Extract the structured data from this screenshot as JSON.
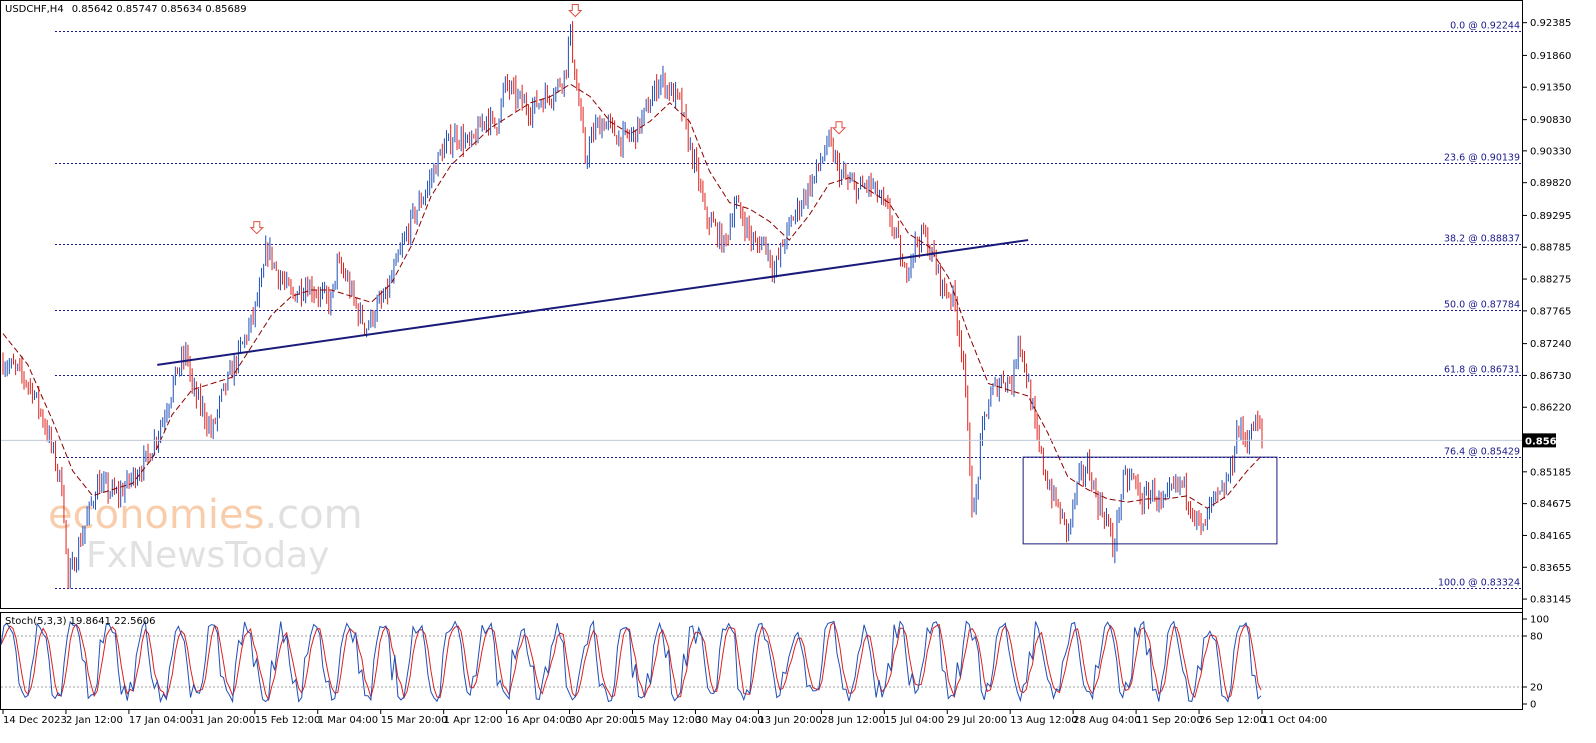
{
  "title": {
    "symbol": "USDCHF,H4",
    "ohlc": "0.85642 0.85747 0.85634 0.85689"
  },
  "chart_data": {
    "type": "line",
    "symbol": "USDCHF",
    "timeframe": "H4",
    "ylim": [
      0.8305,
      0.9262
    ],
    "y_ticks": [
      "0.92385",
      "0.91860",
      "0.91350",
      "0.90830",
      "0.90330",
      "0.89820",
      "0.89295",
      "0.88785",
      "0.88275",
      "0.87765",
      "0.87240",
      "0.86730",
      "0.86220",
      "0.85185",
      "0.84675",
      "0.84165",
      "0.83655",
      "0.83145"
    ],
    "x_ticks": [
      "14 Dec 2023",
      "2 Jan 12:00",
      "17 Jan 04:00",
      "31 Jan 20:00",
      "15 Feb 12:00",
      "1 Mar 04:00",
      "15 Mar 20:00",
      "1 Apr 12:00",
      "16 Apr 04:00",
      "30 Apr 20:00",
      "15 May 12:00",
      "30 May 04:00",
      "13 Jun 20:00",
      "28 Jun 12:00",
      "15 Jul 04:00",
      "29 Jul 20:00",
      "13 Aug 12:00",
      "28 Aug 04:00",
      "11 Sep 20:00",
      "26 Sep 12:00",
      "11 Oct 04:00"
    ],
    "price_path": [
      [
        0,
        0.8695
      ],
      [
        3,
        0.868
      ],
      [
        6,
        0.865
      ],
      [
        9,
        0.858
      ],
      [
        12,
        0.849
      ],
      [
        13,
        0.834
      ],
      [
        16,
        0.842
      ],
      [
        19,
        0.85
      ],
      [
        23,
        0.848
      ],
      [
        26,
        0.851
      ],
      [
        29,
        0.854
      ],
      [
        32,
        0.86
      ],
      [
        35,
        0.868
      ],
      [
        37,
        0.871
      ],
      [
        38,
        0.865
      ],
      [
        40,
        0.862
      ],
      [
        42,
        0.858
      ],
      [
        44,
        0.864
      ],
      [
        46,
        0.868
      ],
      [
        48,
        0.872
      ],
      [
        50,
        0.876
      ],
      [
        52,
        0.882
      ],
      [
        53,
        0.888
      ],
      [
        55,
        0.884
      ],
      [
        58,
        0.88
      ],
      [
        61,
        0.882
      ],
      [
        64,
        0.88
      ],
      [
        66,
        0.879
      ],
      [
        67,
        0.885
      ],
      [
        69,
        0.883
      ],
      [
        71,
        0.878
      ],
      [
        73,
        0.875
      ],
      [
        75,
        0.878
      ],
      [
        77,
        0.88
      ],
      [
        79,
        0.885
      ],
      [
        82,
        0.892
      ],
      [
        85,
        0.897
      ],
      [
        88,
        0.903
      ],
      [
        91,
        0.906
      ],
      [
        94,
        0.904
      ],
      [
        97,
        0.909
      ],
      [
        99,
        0.907
      ],
      [
        101,
        0.914
      ],
      [
        103,
        0.912
      ],
      [
        106,
        0.91
      ],
      [
        109,
        0.912
      ],
      [
        111,
        0.913
      ],
      [
        113,
        0.916
      ],
      [
        114,
        0.9224
      ],
      [
        115,
        0.915
      ],
      [
        116,
        0.909
      ],
      [
        117,
        0.902
      ],
      [
        119,
        0.907
      ],
      [
        121,
        0.908
      ],
      [
        124,
        0.905
      ],
      [
        127,
        0.906
      ],
      [
        130,
        0.911
      ],
      [
        132,
        0.915
      ],
      [
        134,
        0.913
      ],
      [
        136,
        0.911
      ],
      [
        138,
        0.904
      ],
      [
        140,
        0.898
      ],
      [
        141,
        0.893
      ],
      [
        143,
        0.891
      ],
      [
        145,
        0.888
      ],
      [
        147,
        0.895
      ],
      [
        149,
        0.892
      ],
      [
        151,
        0.888
      ],
      [
        153,
        0.889
      ],
      [
        155,
        0.884
      ],
      [
        157,
        0.889
      ],
      [
        159,
        0.893
      ],
      [
        161,
        0.896
      ],
      [
        163,
        0.899
      ],
      [
        165,
        0.903
      ],
      [
        166,
        0.9045
      ],
      [
        168,
        0.9
      ],
      [
        170,
        0.898
      ],
      [
        172,
        0.897
      ],
      [
        174,
        0.898
      ],
      [
        176,
        0.896
      ],
      [
        178,
        0.893
      ],
      [
        180,
        0.888
      ],
      [
        181,
        0.883
      ],
      [
        183,
        0.888
      ],
      [
        185,
        0.89
      ],
      [
        187,
        0.886
      ],
      [
        189,
        0.881
      ],
      [
        191,
        0.88
      ],
      [
        193,
        0.87
      ],
      [
        194,
        0.856
      ],
      [
        195,
        0.844
      ],
      [
        196,
        0.852
      ],
      [
        197,
        0.86
      ],
      [
        199,
        0.865
      ],
      [
        201,
        0.867
      ],
      [
        203,
        0.866
      ],
      [
        204,
        0.874
      ],
      [
        206,
        0.866
      ],
      [
        208,
        0.856
      ],
      [
        210,
        0.85
      ],
      [
        212,
        0.846
      ],
      [
        214,
        0.842
      ],
      [
        216,
        0.85
      ],
      [
        218,
        0.853
      ],
      [
        220,
        0.847
      ],
      [
        222,
        0.844
      ],
      [
        223,
        0.839
      ],
      [
        225,
        0.85
      ],
      [
        227,
        0.851
      ],
      [
        229,
        0.847
      ],
      [
        231,
        0.849
      ],
      [
        233,
        0.846
      ],
      [
        235,
        0.849
      ],
      [
        237,
        0.85
      ],
      [
        239,
        0.846
      ],
      [
        241,
        0.842
      ],
      [
        243,
        0.847
      ],
      [
        245,
        0.848
      ],
      [
        247,
        0.853
      ],
      [
        248,
        0.859
      ],
      [
        250,
        0.857
      ],
      [
        252,
        0.86
      ],
      [
        253,
        0.8569
      ]
    ],
    "ma_path": [
      [
        0,
        0.874
      ],
      [
        5,
        0.869
      ],
      [
        10,
        0.86
      ],
      [
        14,
        0.852
      ],
      [
        18,
        0.848
      ],
      [
        22,
        0.849
      ],
      [
        26,
        0.85
      ],
      [
        30,
        0.854
      ],
      [
        34,
        0.861
      ],
      [
        38,
        0.865
      ],
      [
        42,
        0.866
      ],
      [
        46,
        0.867
      ],
      [
        50,
        0.872
      ],
      [
        54,
        0.877
      ],
      [
        58,
        0.88
      ],
      [
        62,
        0.881
      ],
      [
        66,
        0.881
      ],
      [
        70,
        0.88
      ],
      [
        74,
        0.879
      ],
      [
        78,
        0.882
      ],
      [
        82,
        0.888
      ],
      [
        86,
        0.896
      ],
      [
        90,
        0.901
      ],
      [
        94,
        0.904
      ],
      [
        98,
        0.907
      ],
      [
        102,
        0.909
      ],
      [
        106,
        0.911
      ],
      [
        110,
        0.912
      ],
      [
        114,
        0.914
      ],
      [
        118,
        0.912
      ],
      [
        122,
        0.908
      ],
      [
        126,
        0.906
      ],
      [
        130,
        0.908
      ],
      [
        134,
        0.911
      ],
      [
        138,
        0.908
      ],
      [
        142,
        0.9
      ],
      [
        146,
        0.895
      ],
      [
        150,
        0.894
      ],
      [
        154,
        0.892
      ],
      [
        158,
        0.889
      ],
      [
        162,
        0.893
      ],
      [
        166,
        0.898
      ],
      [
        170,
        0.899
      ],
      [
        174,
        0.897
      ],
      [
        178,
        0.895
      ],
      [
        182,
        0.89
      ],
      [
        186,
        0.888
      ],
      [
        190,
        0.883
      ],
      [
        194,
        0.874
      ],
      [
        198,
        0.866
      ],
      [
        202,
        0.865
      ],
      [
        206,
        0.864
      ],
      [
        210,
        0.858
      ],
      [
        214,
        0.851
      ],
      [
        218,
        0.849
      ],
      [
        222,
        0.8475
      ],
      [
        226,
        0.847
      ],
      [
        230,
        0.8475
      ],
      [
        234,
        0.8475
      ],
      [
        238,
        0.848
      ],
      [
        242,
        0.846
      ],
      [
        246,
        0.848
      ],
      [
        250,
        0.852
      ],
      [
        253,
        0.8545
      ]
    ],
    "trendline": [
      [
        31,
        0.869
      ],
      [
        206,
        0.889
      ]
    ],
    "rectangle": {
      "x0": 205,
      "x1": 256,
      "y_low": 0.8403,
      "y_high": 0.8542
    },
    "arrows": [
      {
        "x": 51,
        "y": 0.891
      },
      {
        "x": 115,
        "y": 0.9258
      },
      {
        "x": 168,
        "y": 0.907
      }
    ],
    "fib_levels": [
      {
        "label": "0.0 @ 0.92244",
        "value": 0.92244
      },
      {
        "label": "23.6 @ 0.90139",
        "value": 0.90139
      },
      {
        "label": "38.2 @ 0.88837",
        "value": 0.88837
      },
      {
        "label": "50.0 @ 0.87784",
        "value": 0.87784
      },
      {
        "label": "61.8 @ 0.86731",
        "value": 0.86731
      },
      {
        "label": "76.4 @ 0.85429",
        "value": 0.85429
      },
      {
        "label": "100.0 @ 0.83324",
        "value": 0.83324
      }
    ],
    "current_price": "0.85689",
    "current_value": 0.85689,
    "stochastic": {
      "label": "Stoch(5,3,3) 19.8641 22.5606",
      "ylim": [
        0,
        100
      ],
      "y_ticks": [
        "100",
        "80",
        "20",
        "0"
      ],
      "levels": [
        80,
        20
      ]
    }
  },
  "watermark": {
    "brand_part1": "economies",
    "brand_part2": ".com",
    "line2": "FxNewsToday"
  },
  "colors": {
    "bull": "#1f4fb8",
    "bear": "#e0201b",
    "ma": "#8b0000",
    "trend": "#1a1a7a",
    "fib": "#1a1a8c",
    "arrow": "#e05040",
    "rect": "#1a1a7a"
  }
}
